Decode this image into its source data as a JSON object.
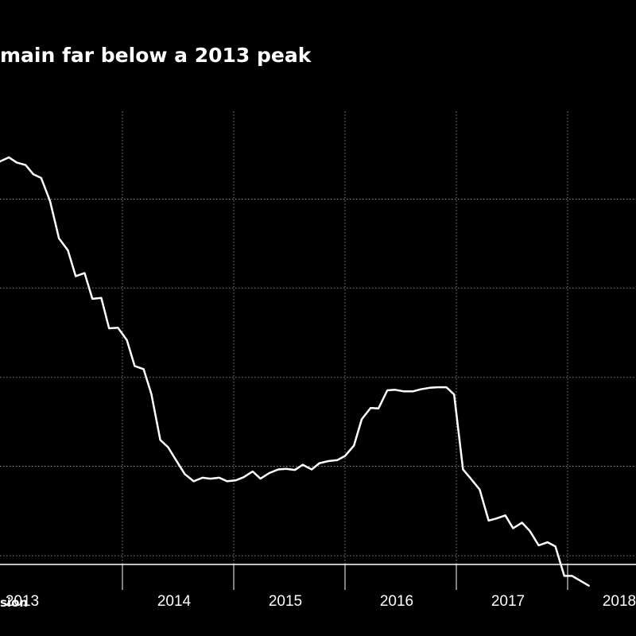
{
  "title": "main far below a 2013 peak",
  "source": "sion",
  "colors": {
    "background": "#000000",
    "line": "#ffffff",
    "grid": "#8a8a8a",
    "text": "#ffffff"
  },
  "chart_data": {
    "type": "line",
    "title": "main far below a 2013 peak",
    "xlabel": "",
    "ylabel": "",
    "grid": true,
    "x_tick_labels": [
      "2013",
      "2014",
      "2015",
      "2016",
      "2017",
      "2018"
    ],
    "xlim": [
      2012.9,
      2018.9
    ],
    "ylim": [
      0,
      100
    ],
    "series": [
      {
        "values": [
          [
            2012.9,
            90.3
          ],
          [
            2012.98,
            91.1
          ],
          [
            2013.05,
            90.1
          ],
          [
            2013.13,
            89.6
          ],
          [
            2013.2,
            87.8
          ],
          [
            2013.27,
            87.1
          ],
          [
            2013.35,
            82.6
          ],
          [
            2013.43,
            75.4
          ],
          [
            2013.51,
            73.1
          ],
          [
            2013.58,
            68.1
          ],
          [
            2013.66,
            68.7
          ],
          [
            2013.73,
            63.7
          ],
          [
            2013.81,
            63.9
          ],
          [
            2013.88,
            58.0
          ],
          [
            2013.96,
            58.1
          ],
          [
            2014.04,
            55.7
          ],
          [
            2014.11,
            50.7
          ],
          [
            2014.19,
            50.1
          ],
          [
            2014.26,
            45.3
          ],
          [
            2014.34,
            36.4
          ],
          [
            2014.41,
            35.0
          ],
          [
            2014.49,
            32.2
          ],
          [
            2014.56,
            29.8
          ],
          [
            2014.64,
            28.4
          ],
          [
            2014.72,
            29.1
          ],
          [
            2014.79,
            28.9
          ],
          [
            2014.87,
            29.1
          ],
          [
            2014.94,
            28.4
          ],
          [
            2015.02,
            28.6
          ],
          [
            2015.09,
            29.2
          ],
          [
            2015.17,
            30.3
          ],
          [
            2015.24,
            28.9
          ],
          [
            2015.32,
            30.0
          ],
          [
            2015.4,
            30.7
          ],
          [
            2015.47,
            30.8
          ],
          [
            2015.55,
            30.6
          ],
          [
            2015.62,
            31.6
          ],
          [
            2015.7,
            30.7
          ],
          [
            2015.77,
            31.9
          ],
          [
            2015.85,
            32.3
          ],
          [
            2015.93,
            32.5
          ],
          [
            2016.0,
            33.3
          ],
          [
            2016.08,
            35.3
          ],
          [
            2016.15,
            40.4
          ],
          [
            2016.23,
            42.6
          ],
          [
            2016.3,
            42.5
          ],
          [
            2016.38,
            46.0
          ],
          [
            2016.45,
            46.1
          ],
          [
            2016.53,
            45.8
          ],
          [
            2016.61,
            45.8
          ],
          [
            2016.68,
            46.2
          ],
          [
            2016.76,
            46.5
          ],
          [
            2016.83,
            46.6
          ],
          [
            2016.91,
            46.6
          ],
          [
            2016.98,
            45.2
          ],
          [
            2017.06,
            30.7
          ],
          [
            2017.13,
            28.9
          ],
          [
            2017.21,
            26.8
          ],
          [
            2017.29,
            20.8
          ],
          [
            2017.36,
            21.2
          ],
          [
            2017.44,
            21.8
          ],
          [
            2017.51,
            19.3
          ],
          [
            2017.59,
            20.4
          ],
          [
            2017.66,
            18.8
          ],
          [
            2017.74,
            16.0
          ],
          [
            2017.82,
            16.6
          ],
          [
            2017.89,
            15.8
          ],
          [
            2017.97,
            10.1
          ],
          [
            2018.04,
            10.1
          ],
          [
            2018.12,
            9.1
          ],
          [
            2018.19,
            8.2
          ]
        ]
      }
    ]
  }
}
